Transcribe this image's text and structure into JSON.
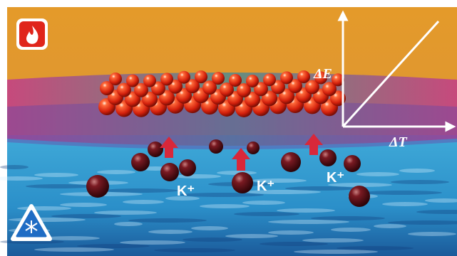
{
  "axes": {
    "y_label": "ΔE",
    "x_label": "ΔT"
  },
  "ions": [
    "K⁺",
    "K⁺",
    "K⁺"
  ]
}
